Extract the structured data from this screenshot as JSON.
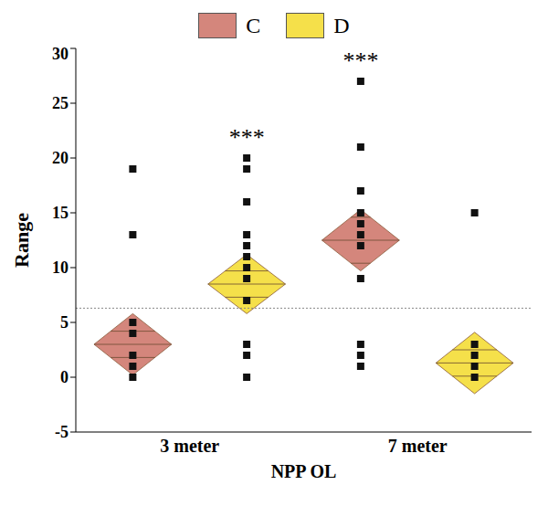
{
  "chart_data": {
    "type": "means_diamond",
    "y_label": "Range",
    "x_label": "NPP OL",
    "categories": [
      "3 meter",
      "7 meter"
    ],
    "ylim": [
      -5,
      30
    ],
    "yticks": [
      -5,
      0,
      5,
      10,
      15,
      20,
      25,
      30
    ],
    "legend": "top",
    "grand_mean": 6.3,
    "series": [
      {
        "name": "C",
        "color": "#d4867c",
        "points": [
          [
            19,
            13,
            5,
            4,
            2,
            1,
            0
          ],
          [
            27,
            21,
            17,
            15,
            14,
            13,
            12,
            9,
            3,
            2,
            1
          ]
        ],
        "mean": [
          3,
          12.5
        ],
        "ci": [
          [
            0.2,
            5.8
          ],
          [
            9.7,
            15.3
          ]
        ],
        "overlap_marks": [
          [
            1.8,
            4.2
          ],
          [
            10.4,
            14.6
          ]
        ]
      },
      {
        "name": "D",
        "color": "#f5e04a",
        "points": [
          [
            20,
            19,
            16,
            13,
            12,
            11,
            10,
            9,
            7,
            3,
            2,
            0
          ],
          [
            15,
            3,
            2,
            1,
            0
          ]
        ],
        "mean": [
          8.5,
          1.3
        ],
        "ci": [
          [
            5.8,
            11.2
          ],
          [
            -1.5,
            4.1
          ]
        ],
        "overlap_marks": [
          [
            7.3,
            9.7
          ],
          [
            0.1,
            2.5
          ]
        ]
      }
    ],
    "annotations": [
      {
        "text": "***",
        "category": "3 meter",
        "series": "D"
      },
      {
        "text": "***",
        "category": "7 meter",
        "series": "C"
      }
    ]
  }
}
